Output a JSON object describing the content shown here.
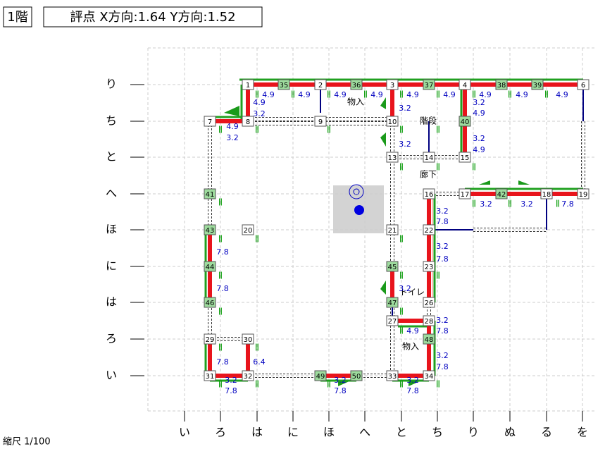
{
  "header": {
    "floor": "1階",
    "score": "評点 X方向:1.64 Y方向:1.52"
  },
  "row_labels": [
    "り",
    "ち",
    "と",
    "へ",
    "ほ",
    "に",
    "は",
    "ろ",
    "い"
  ],
  "col_labels": [
    "い",
    "ろ",
    "は",
    "に",
    "ほ",
    "へ",
    "と",
    "ち",
    "り",
    "ぬ",
    "る",
    "を"
  ],
  "nodes": [
    "1",
    "35",
    "2",
    "36",
    "3",
    "37",
    "4",
    "38",
    "39",
    "6",
    "7",
    "8",
    "9",
    "10",
    "40",
    "13",
    "14",
    "15",
    "41",
    "16",
    "17",
    "42",
    "18",
    "19",
    "43",
    "20",
    "21",
    "22",
    "44",
    "45",
    "23",
    "46",
    "47",
    "26",
    "27",
    "28",
    "48",
    "29",
    "30",
    "31",
    "32",
    "49",
    "50",
    "33",
    "34"
  ],
  "rooms": [
    "物入",
    "階段",
    "廊下",
    "トイレ",
    "物入"
  ],
  "labels": [
    "Ⅱ",
    "4.9",
    "Ⅱ",
    "4.9",
    "Ⅱ",
    "4.9",
    "Ⅱ",
    "4.9",
    "Ⅱ",
    "4.9",
    "Ⅱ",
    "4.9",
    "Ⅱ",
    "4.9",
    "Ⅱ",
    "4.9",
    "Ⅱ",
    "4.9",
    "4.9",
    "3.2",
    "3.2",
    "3.2",
    "4.9",
    "Ⅱ",
    "4.9",
    "3.2",
    "Ⅱ",
    "Ⅱ",
    "Ⅱ",
    "3.2",
    "Ⅱ",
    "3.2",
    "4.9",
    "Ⅱ",
    "Ⅱ",
    "Ⅱ",
    "Ⅱ",
    "3.2",
    "7.8",
    "Ⅱ",
    "3.2",
    "Ⅱ",
    "3.2",
    "Ⅱ",
    "7.8",
    "Ⅱ",
    "7.8",
    "Ⅱ",
    "Ⅱ",
    "3.2",
    "7.8",
    "Ⅱ",
    "7.8",
    "Ⅱ",
    "3.2",
    "Ⅱ",
    "Ⅱ",
    "Ⅱ",
    "3.2",
    "7.8",
    "Ⅱ",
    "4.9",
    "3.2",
    "7.8",
    "Ⅱ",
    "7.8",
    "Ⅱ",
    "6.4",
    "Ⅱ",
    "3.2",
    "7.8",
    "Ⅱ",
    "Ⅱ",
    "3.2",
    "7.8",
    "Ⅱ",
    "3.2",
    "7.8",
    "Ⅱ"
  ],
  "footer": "縮尺 1/100"
}
